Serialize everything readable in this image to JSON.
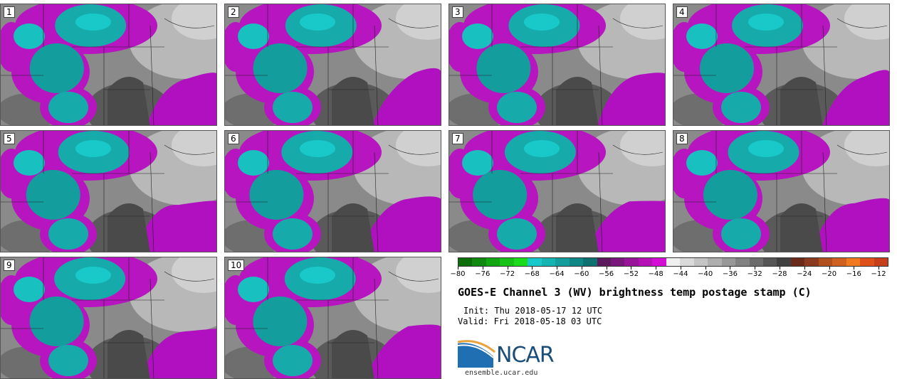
{
  "panels": [
    {
      "label": "1"
    },
    {
      "label": "2"
    },
    {
      "label": "3"
    },
    {
      "label": "4"
    },
    {
      "label": "5"
    },
    {
      "label": "6"
    },
    {
      "label": "7"
    },
    {
      "label": "8"
    },
    {
      "label": "9"
    },
    {
      "label": "10"
    }
  ],
  "colorbar": {
    "colors": [
      "#0b6e0b",
      "#0f8a0f",
      "#13a613",
      "#17c217",
      "#1bdc1b",
      "#19c9c9",
      "#16b3b3",
      "#139d9d",
      "#108787",
      "#0d7171",
      "#5c1a5c",
      "#7a177a",
      "#981498",
      "#b611b6",
      "#d40ed4",
      "#f0f0f0",
      "#dadada",
      "#c4c4c4",
      "#aeaeae",
      "#989898",
      "#828282",
      "#6c6c6c",
      "#565656",
      "#404040",
      "#6b2a1a",
      "#8a3a1e",
      "#b0501f",
      "#d06020",
      "#f07a20",
      "#e0501a",
      "#c8401a"
    ],
    "tick_labels": [
      "−80",
      "−76",
      "−72",
      "−68",
      "−64",
      "−60",
      "−56",
      "−52",
      "−48",
      "−44",
      "−40",
      "−36",
      "−32",
      "−28",
      "−24",
      "−20",
      "−16",
      "−12"
    ]
  },
  "title": "GOES-E Channel 3 (WV) brightness temp postage stamp (C)",
  "init": "Init: Thu 2018-05-17 12 UTC",
  "valid": "Valid: Fri 2018-05-18 03 UTC",
  "logo": {
    "text": "NCAR"
  },
  "site": "ensemble.ucar.edu"
}
